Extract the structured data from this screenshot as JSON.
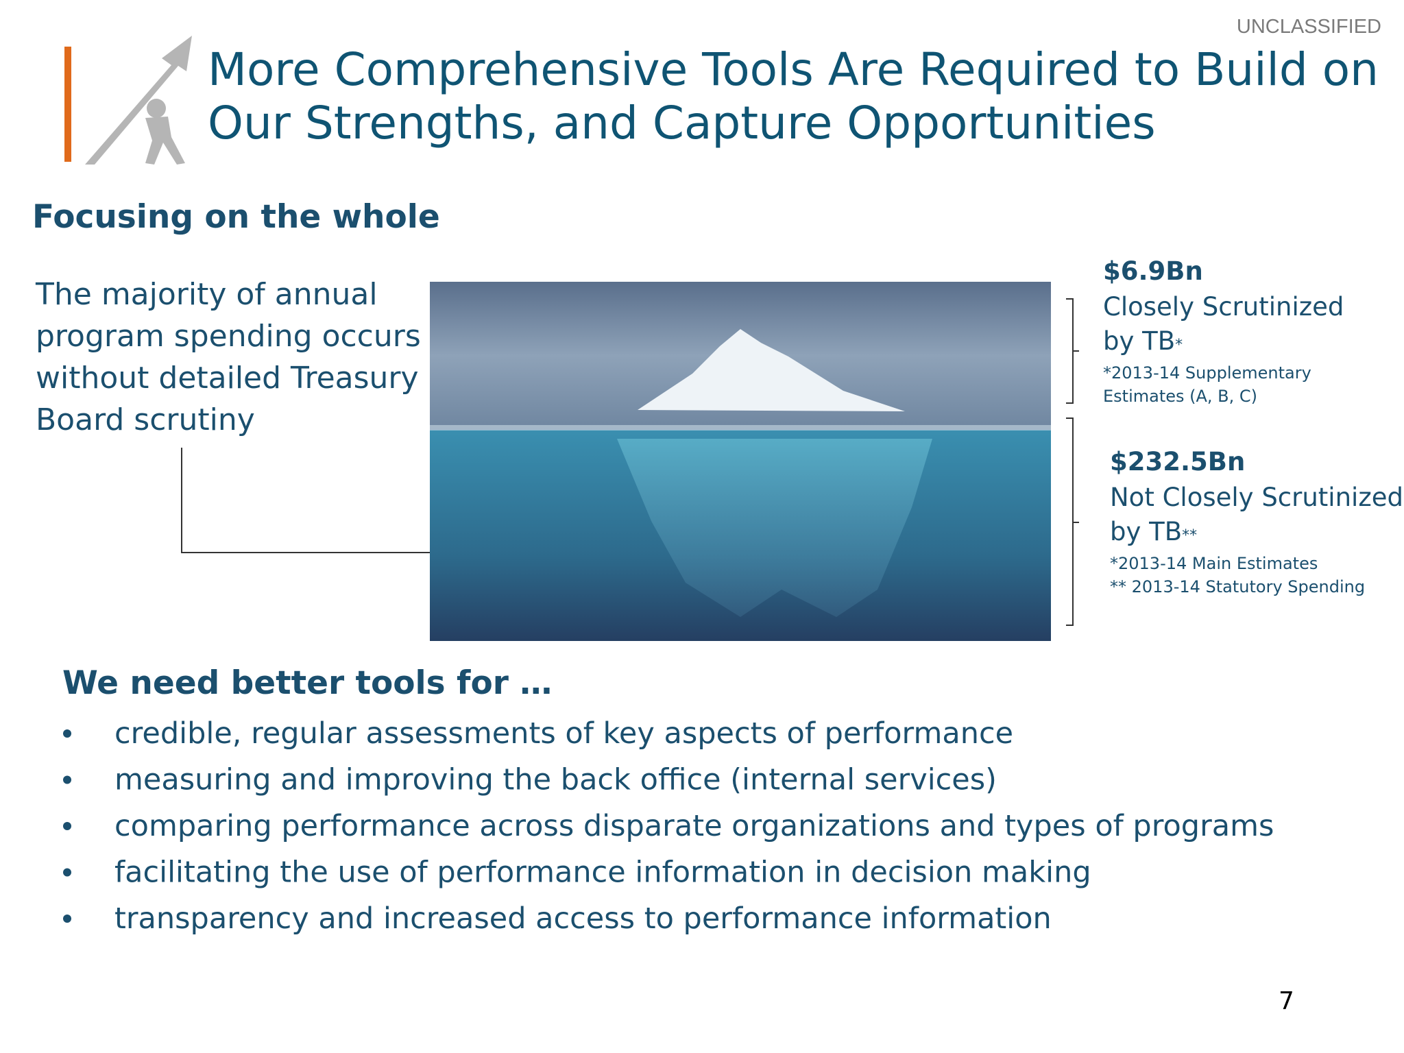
{
  "classification": "UNCLASSIFIED",
  "header": {
    "title_lines": [
      "More Comprehensive Tools Are Required to Build on",
      "Our Strengths, and Capture Opportunities"
    ]
  },
  "subtitle": "Focusing on the whole",
  "callout": {
    "lines": [
      "The majority of annual",
      "program spending occurs",
      "without detailed Treasury",
      "Board scrutiny"
    ]
  },
  "iceberg": {
    "above": {
      "amount": "$6.9Bn",
      "lines": [
        "Closely Scrutinized",
        "by TB"
      ],
      "mark": "*",
      "notes": [
        "*2013-14 Supplementary",
        "Estimates (A, B, C)"
      ]
    },
    "below": {
      "amount": "$232.5Bn",
      "lines": [
        "Not Closely Scrutinized",
        "by TB"
      ],
      "mark": "**",
      "notes": [
        "*2013-14 Main Estimates",
        "** 2013-14 Statutory Spending"
      ]
    }
  },
  "needs": {
    "heading": "We need better tools for …",
    "items": [
      "credible, regular assessments of key aspects of performance",
      "measuring and improving the back office (internal services)",
      "comparing performance across disparate organizations and types of programs",
      "facilitating the use of performance information in decision making",
      "transparency and increased access to performance information"
    ]
  },
  "page_number": "7"
}
